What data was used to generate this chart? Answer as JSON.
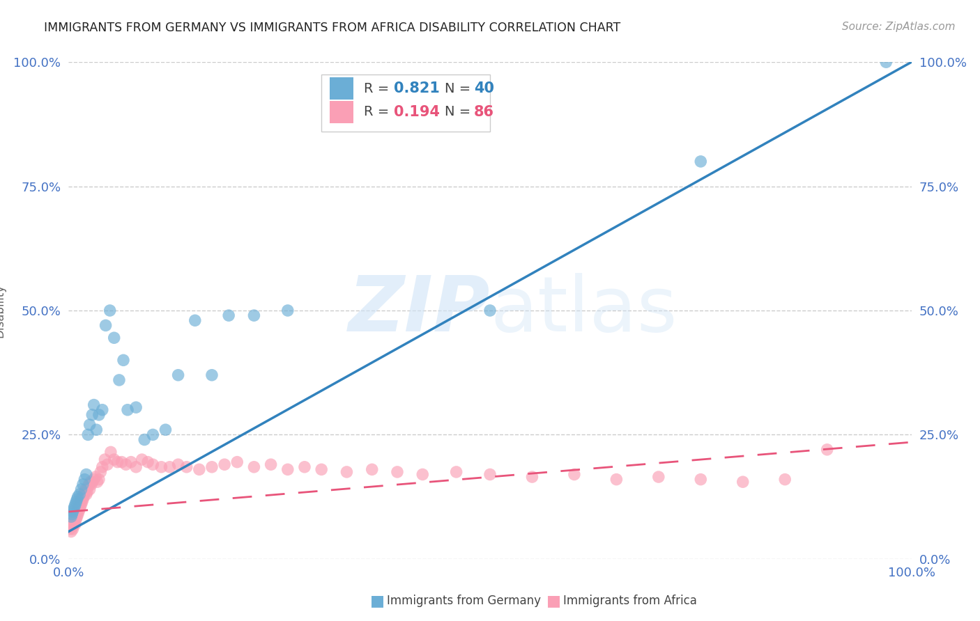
{
  "title": "IMMIGRANTS FROM GERMANY VS IMMIGRANTS FROM AFRICA DISABILITY CORRELATION CHART",
  "source": "Source: ZipAtlas.com",
  "ylabel": "Disability",
  "xlabel": "",
  "watermark": "ZIPatlas",
  "bg_color": "#ffffff",
  "plot_bg_color": "#ffffff",
  "grid_color": "#cccccc",
  "xmin": 0.0,
  "xmax": 1.0,
  "ymin": 0.0,
  "ymax": 1.0,
  "xtick_labels": [
    "0.0%",
    "100.0%"
  ],
  "ytick_labels": [
    "0.0%",
    "25.0%",
    "50.0%",
    "75.0%",
    "100.0%"
  ],
  "ytick_vals": [
    0.0,
    0.25,
    0.5,
    0.75,
    1.0
  ],
  "xtick_vals": [
    0.0,
    1.0
  ],
  "legend_r_germany": "0.821",
  "legend_n_germany": "40",
  "legend_r_africa": "0.194",
  "legend_n_africa": "86",
  "germany_color": "#6baed6",
  "africa_color": "#fa9fb5",
  "germany_line_color": "#3182bd",
  "africa_line_color": "#e8547a",
  "germany_scatter_x": [
    0.003,
    0.004,
    0.005,
    0.006,
    0.007,
    0.008,
    0.009,
    0.01,
    0.011,
    0.013,
    0.015,
    0.017,
    0.019,
    0.021,
    0.023,
    0.025,
    0.028,
    0.03,
    0.033,
    0.036,
    0.04,
    0.044,
    0.049,
    0.054,
    0.06,
    0.065,
    0.07,
    0.08,
    0.09,
    0.1,
    0.115,
    0.13,
    0.15,
    0.17,
    0.19,
    0.22,
    0.26,
    0.5,
    0.75,
    0.97
  ],
  "germany_scatter_y": [
    0.085,
    0.09,
    0.095,
    0.1,
    0.105,
    0.11,
    0.115,
    0.12,
    0.125,
    0.13,
    0.14,
    0.15,
    0.16,
    0.17,
    0.25,
    0.27,
    0.29,
    0.31,
    0.26,
    0.29,
    0.3,
    0.47,
    0.5,
    0.445,
    0.36,
    0.4,
    0.3,
    0.305,
    0.24,
    0.25,
    0.26,
    0.37,
    0.48,
    0.37,
    0.49,
    0.49,
    0.5,
    0.5,
    0.8,
    1.0
  ],
  "africa_scatter_x": [
    0.001,
    0.002,
    0.003,
    0.004,
    0.005,
    0.005,
    0.006,
    0.006,
    0.007,
    0.007,
    0.008,
    0.008,
    0.009,
    0.009,
    0.01,
    0.01,
    0.011,
    0.011,
    0.012,
    0.012,
    0.013,
    0.013,
    0.014,
    0.014,
    0.015,
    0.015,
    0.016,
    0.016,
    0.017,
    0.018,
    0.018,
    0.019,
    0.02,
    0.021,
    0.022,
    0.023,
    0.024,
    0.025,
    0.026,
    0.027,
    0.028,
    0.03,
    0.032,
    0.034,
    0.036,
    0.038,
    0.04,
    0.043,
    0.046,
    0.05,
    0.054,
    0.058,
    0.063,
    0.068,
    0.074,
    0.08,
    0.087,
    0.094,
    0.1,
    0.11,
    0.12,
    0.13,
    0.14,
    0.155,
    0.17,
    0.185,
    0.2,
    0.22,
    0.24,
    0.26,
    0.28,
    0.3,
    0.33,
    0.36,
    0.39,
    0.42,
    0.46,
    0.5,
    0.55,
    0.6,
    0.65,
    0.7,
    0.75,
    0.8,
    0.85,
    0.9
  ],
  "africa_scatter_y": [
    0.06,
    0.065,
    0.055,
    0.07,
    0.065,
    0.06,
    0.075,
    0.07,
    0.08,
    0.075,
    0.085,
    0.07,
    0.09,
    0.08,
    0.095,
    0.085,
    0.1,
    0.09,
    0.105,
    0.095,
    0.11,
    0.1,
    0.115,
    0.105,
    0.12,
    0.11,
    0.115,
    0.125,
    0.12,
    0.13,
    0.125,
    0.135,
    0.14,
    0.13,
    0.135,
    0.145,
    0.15,
    0.14,
    0.155,
    0.15,
    0.155,
    0.16,
    0.165,
    0.155,
    0.16,
    0.175,
    0.185,
    0.2,
    0.19,
    0.215,
    0.2,
    0.195,
    0.195,
    0.19,
    0.195,
    0.185,
    0.2,
    0.195,
    0.19,
    0.185,
    0.185,
    0.19,
    0.185,
    0.18,
    0.185,
    0.19,
    0.195,
    0.185,
    0.19,
    0.18,
    0.185,
    0.18,
    0.175,
    0.18,
    0.175,
    0.17,
    0.175,
    0.17,
    0.165,
    0.17,
    0.16,
    0.165,
    0.16,
    0.155,
    0.16,
    0.22
  ]
}
